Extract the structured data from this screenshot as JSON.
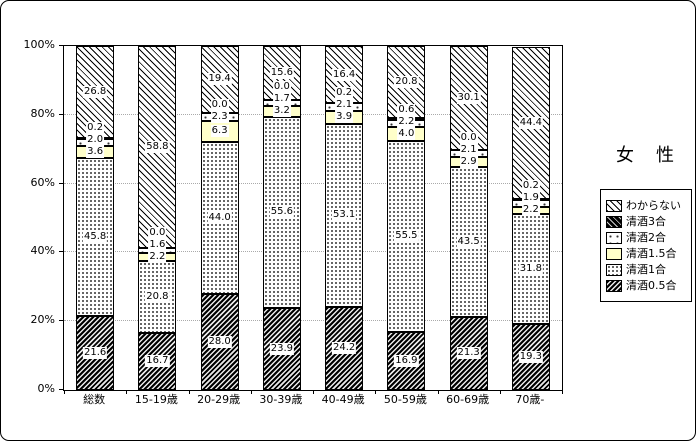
{
  "chart_data": {
    "type": "bar",
    "stacked": true,
    "percent": true,
    "title": "女　性",
    "categories": [
      "総数",
      "15-19歳",
      "20-29歳",
      "30-39歳",
      "40-49歳",
      "50-59歳",
      "60-69歳",
      "70歳-"
    ],
    "series": [
      {
        "name": "清酒0.5合",
        "pattern": "dark-hatch",
        "values": [
          21.6,
          16.7,
          28.0,
          23.9,
          24.2,
          16.9,
          21.3,
          19.3
        ]
      },
      {
        "name": "清酒1合",
        "pattern": "dots-dense",
        "values": [
          45.8,
          20.8,
          44.0,
          55.6,
          53.1,
          55.5,
          43.5,
          31.8
        ]
      },
      {
        "name": "清酒1.5合",
        "pattern": "yellow",
        "values": [
          3.6,
          2.2,
          6.3,
          3.2,
          3.9,
          4.0,
          2.9,
          2.2
        ]
      },
      {
        "name": "清酒2合",
        "pattern": "dots-sparse",
        "values": [
          2.0,
          1.6,
          2.3,
          1.7,
          2.1,
          2.2,
          2.1,
          1.9
        ]
      },
      {
        "name": "清酒3合",
        "pattern": "dark-solid",
        "values": [
          0.2,
          0.0,
          0.0,
          0.0,
          0.2,
          0.6,
          0.0,
          0.2
        ]
      },
      {
        "name": "わからない",
        "pattern": "diag-lines",
        "values": [
          26.8,
          58.8,
          19.4,
          15.6,
          16.4,
          20.8,
          30.1,
          44.4
        ]
      }
    ],
    "y_ticks": [
      "0%",
      "20%",
      "40%",
      "60%",
      "80%",
      "100%"
    ],
    "ylim": [
      0,
      100
    ],
    "gridlines_at": [
      20,
      40,
      60,
      80
    ],
    "legend_position": "right",
    "legend_order_top_to_bottom": [
      "わからない",
      "清酒3合",
      "清酒2合",
      "清酒1.5合",
      "清酒1合",
      "清酒0.5合"
    ]
  }
}
